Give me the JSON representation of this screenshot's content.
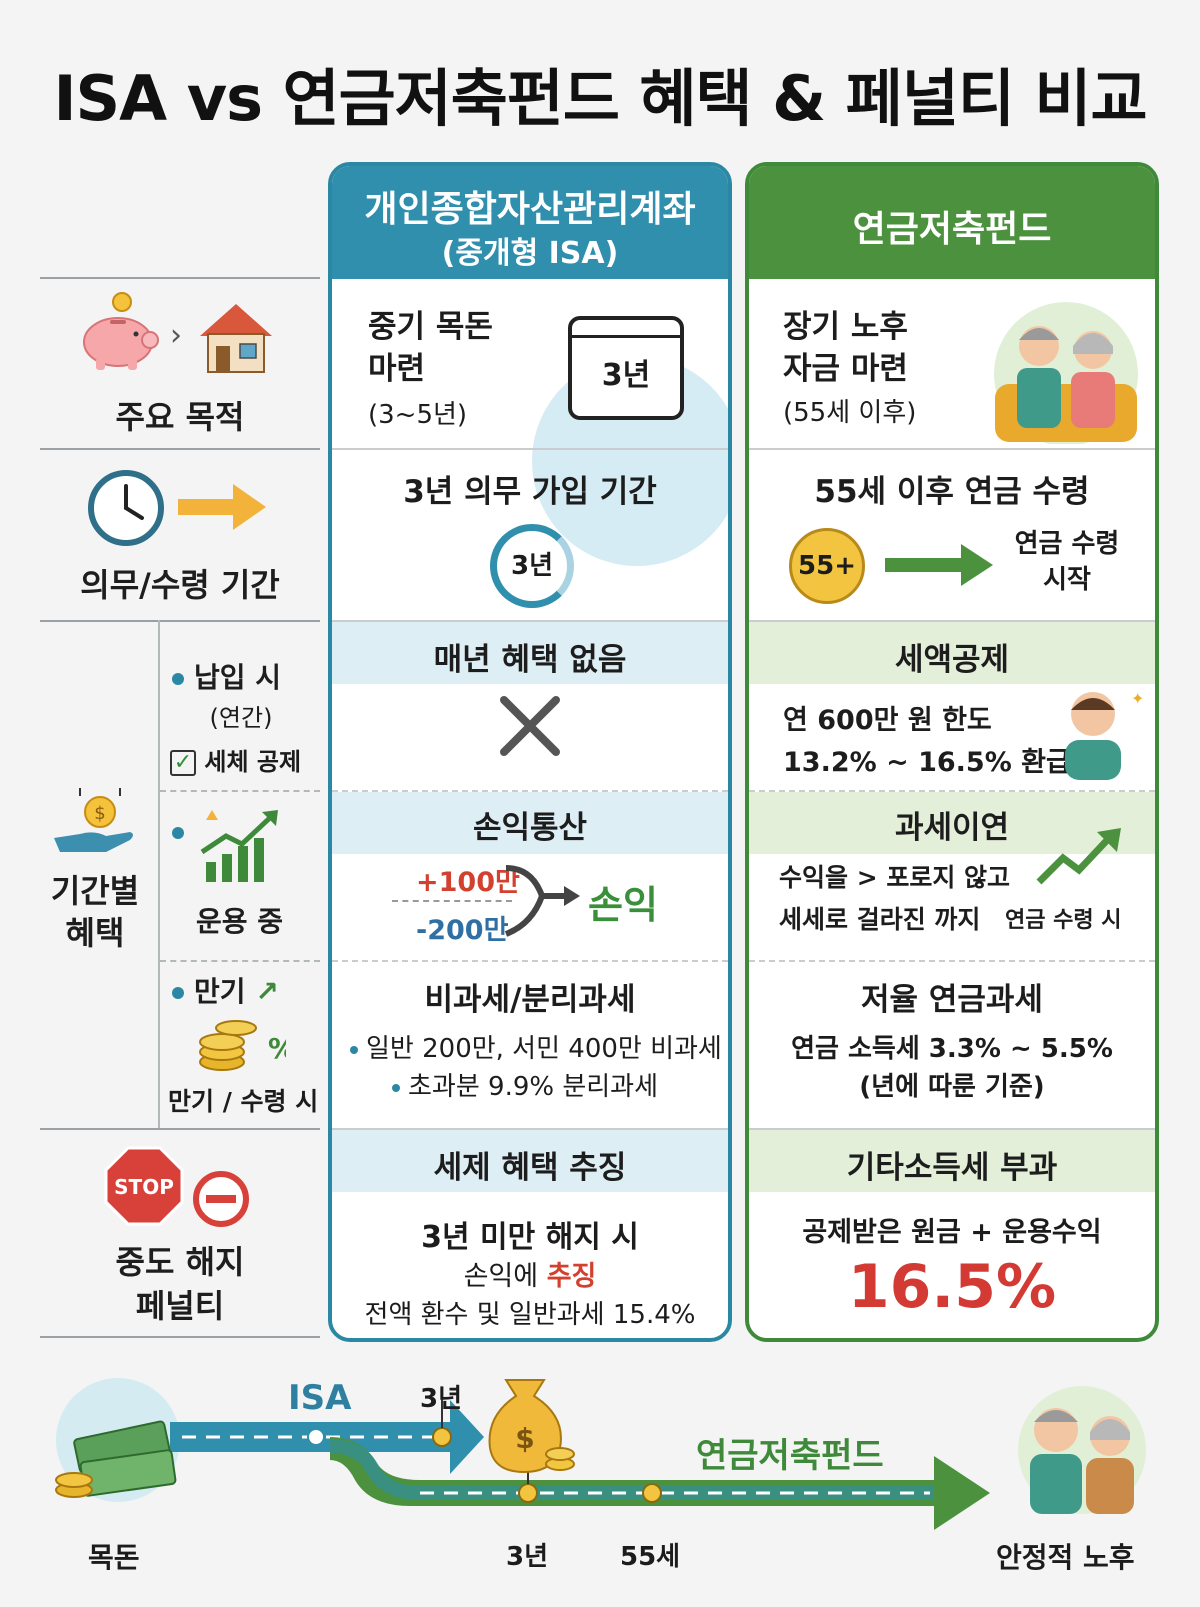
{
  "title": "ISA vs 연금저축펀드 혜택 & 페널티 비교",
  "colors": {
    "isa": "#2f8fad",
    "pension": "#4b913e",
    "penalty": "#d23a33"
  },
  "columns": {
    "isa": {
      "title": "개인종합자산관리계좌",
      "subtitle": "(중개형 ISA)"
    },
    "pension": {
      "title": "연금저축펀드"
    }
  },
  "rows": {
    "purpose": {
      "label": "주요 목적",
      "icons": [
        "piggy-bank-icon",
        "house-icon"
      ],
      "isa": {
        "line1": "중기 목돈",
        "line2": "마련",
        "line3": "(3~5년)",
        "badge": "3년"
      },
      "pension": {
        "line1": "장기 노후",
        "line2": "자금 마련",
        "line3": "(55세 이후)"
      }
    },
    "period": {
      "label": "의무/수령 기간",
      "icons": [
        "clock-icon",
        "arrow-right-icon"
      ],
      "isa": {
        "heading": "3년 의무 가입 기간",
        "badge": "3년"
      },
      "pension": {
        "heading": "55세 이후 연금 수령",
        "badge": "55+",
        "arrow_text1": "연금 수령",
        "arrow_text2": "시작"
      }
    },
    "benefits": {
      "label1": "기간별",
      "label2": "혜택",
      "pay": {
        "label": "납입 시",
        "sub": "(연간)",
        "check": "세체 공제",
        "isa": {
          "heading": "매년 혜택 없음"
        },
        "pension": {
          "heading": "세액공제",
          "line1": "연 600만 원 한도",
          "line2": "13.2% ~ 16.5% 환급"
        }
      },
      "operate": {
        "label": "운용 중",
        "isa": {
          "heading": "손익통산",
          "plus": "+100만",
          "minus": "-200만",
          "result": "손익"
        },
        "pension": {
          "heading": "과세이연",
          "line1": "수익을 > 포로지 않고",
          "line2": "세세로 걸라진 까지",
          "line3": "연금 수령 시"
        }
      },
      "maturity": {
        "label": "만기",
        "sub": "만기 / 수령 시",
        "isa": {
          "heading": "비과세/분리과세",
          "bullet1": "일반 200만, 서민 400만 비과세",
          "bullet2": "초과분 9.9% 분리과세"
        },
        "pension": {
          "heading": "저율 연금과세",
          "line1": "연금 소득세 3.3% ~ 5.5%",
          "line2": "(년에 따룬 기준)"
        }
      }
    },
    "penalty": {
      "label1": "중도 해지",
      "label2": "페널티",
      "stop": "STOP",
      "isa": {
        "heading": "세제 혜택 추징",
        "line1": "3년 미만 해지 시",
        "line2a": "손익에 ",
        "line2b": "추징",
        "line3": "전액 환수 및 일반과세 15.4%"
      },
      "pension": {
        "heading": "기타소득세 부과",
        "line1": "공제받은 원금 + 운용수익",
        "rate": "16.5%"
      }
    }
  },
  "roadmap": {
    "isa_label": "ISA",
    "isa_year": "3년",
    "pension_label": "연금저축펀드",
    "start_label": "목돈",
    "mark_3y": "3년",
    "mark_55": "55세",
    "end_label": "안정적 노후"
  }
}
